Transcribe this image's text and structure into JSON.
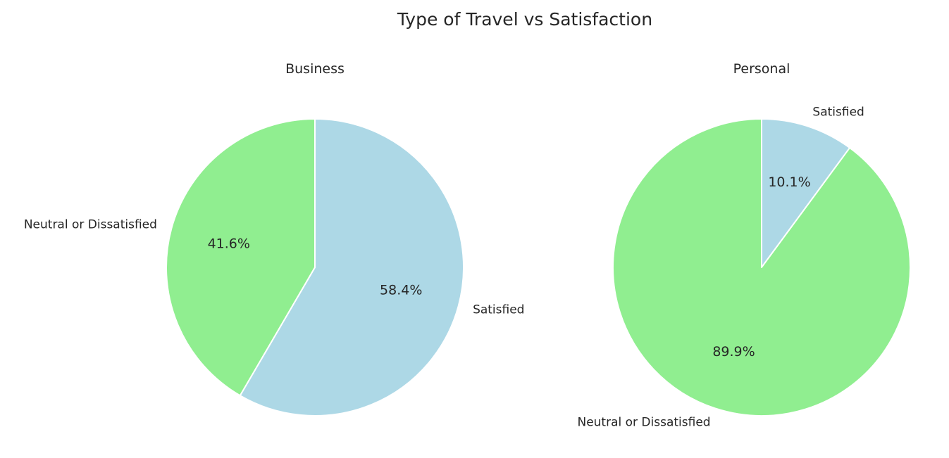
{
  "chart_data": {
    "type": "pie",
    "title": "Type of Travel vs Satisfaction",
    "charts": [
      {
        "title": "Business",
        "slices": [
          {
            "label": "Satisfied",
            "value": 58.4,
            "pct_text": "58.4%",
            "color": "#add8e6"
          },
          {
            "label": "Neutral or Dissatisfied",
            "value": 41.6,
            "pct_text": "41.6%",
            "color": "#90ee90"
          }
        ]
      },
      {
        "title": "Personal",
        "slices": [
          {
            "label": "Satisfied",
            "value": 10.1,
            "pct_text": "10.1%",
            "color": "#add8e6"
          },
          {
            "label": "Neutral or Dissatisfied",
            "value": 89.9,
            "pct_text": "89.9%",
            "color": "#90ee90"
          }
        ]
      }
    ],
    "start_angle_deg": 90,
    "direction": "clockwise",
    "edge_color": "#ffffff"
  }
}
